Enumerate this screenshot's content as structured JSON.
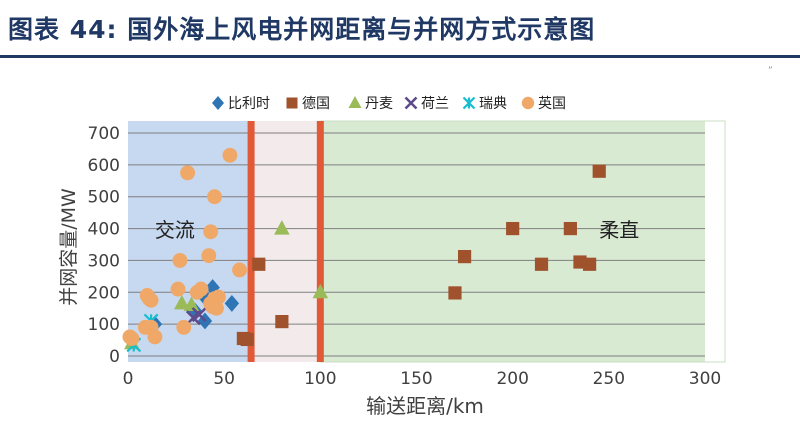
{
  "figure": {
    "title": "图表 44: 国外海上风电并网距离与并网方式示意图",
    "page_mark": "”"
  },
  "colors": {
    "title": "#1f3864",
    "ac_zone": "#c6d9f1",
    "mid_zone": "#f3ebeb",
    "dc_zone": "#d9ead3",
    "divider": "#e05a38",
    "gridline": "#7f7f7f",
    "axis_text": "#404040"
  },
  "chart_data": {
    "type": "scatter",
    "xlabel": "输送距离/km",
    "ylabel": "并网容量/MW",
    "xlim": [
      0,
      300
    ],
    "ylim": [
      0,
      700
    ],
    "x_ticks": [
      0,
      50,
      100,
      150,
      200,
      250,
      300
    ],
    "y_ticks": [
      0,
      100,
      200,
      300,
      400,
      500,
      600,
      700
    ],
    "grid": "horizontal",
    "legend_position": "top",
    "zones": [
      {
        "name": "ac",
        "from": 0,
        "to": 64,
        "label": "交流",
        "label_x": 14,
        "label_y": 395,
        "color": "#c6d9f1"
      },
      {
        "name": "mid",
        "from": 64,
        "to": 100,
        "label": "",
        "color": "#f3ebeb"
      },
      {
        "name": "dc",
        "from": 100,
        "to": 300,
        "label": "柔直",
        "label_x": 245,
        "label_y": 395,
        "color": "#d9ead3"
      }
    ],
    "dividers": [
      64,
      100
    ],
    "series": [
      {
        "name": "比利时",
        "marker": "diamond",
        "color": "#2e75b6",
        "points": [
          [
            44,
            215
          ],
          [
            40,
            185
          ],
          [
            54,
            165
          ],
          [
            40,
            110
          ],
          [
            14,
            100
          ],
          [
            35,
            140
          ]
        ]
      },
      {
        "name": "德国",
        "marker": "square",
        "color": "#a0522d",
        "points": [
          [
            68,
            288
          ],
          [
            80,
            108
          ],
          [
            60,
            55
          ],
          [
            62,
            52
          ],
          [
            170,
            198
          ],
          [
            175,
            312
          ],
          [
            200,
            400
          ],
          [
            215,
            288
          ],
          [
            230,
            400
          ],
          [
            235,
            295
          ],
          [
            240,
            288
          ],
          [
            245,
            580
          ]
        ]
      },
      {
        "name": "丹麦",
        "marker": "triangle",
        "color": "#9bbb59",
        "points": [
          [
            80,
            400
          ],
          [
            28,
            165
          ],
          [
            33,
            160
          ],
          [
            2,
            40
          ],
          [
            100,
            200
          ]
        ]
      },
      {
        "name": "荷兰",
        "marker": "x",
        "color": "#5f4b8b",
        "points": [
          [
            34,
            120
          ],
          [
            37,
            130
          ]
        ]
      },
      {
        "name": "瑞典",
        "marker": "asterisk",
        "color": "#17becf",
        "points": [
          [
            12,
            110
          ],
          [
            3,
            35
          ]
        ]
      },
      {
        "name": "英国",
        "marker": "circle",
        "color": "#f0a868",
        "points": [
          [
            53,
            630
          ],
          [
            31,
            575
          ],
          [
            45,
            500
          ],
          [
            43,
            390
          ],
          [
            27,
            300
          ],
          [
            42,
            315
          ],
          [
            58,
            270
          ],
          [
            38,
            210
          ],
          [
            36,
            200
          ],
          [
            26,
            210
          ],
          [
            10,
            190
          ],
          [
            11,
            180
          ],
          [
            12,
            175
          ],
          [
            45,
            180
          ],
          [
            47,
            185
          ],
          [
            43,
            165
          ],
          [
            44,
            155
          ],
          [
            46,
            150
          ],
          [
            29,
            90
          ],
          [
            9,
            90
          ],
          [
            12,
            90
          ],
          [
            14,
            60
          ],
          [
            1,
            60
          ],
          [
            2,
            55
          ]
        ]
      }
    ]
  }
}
